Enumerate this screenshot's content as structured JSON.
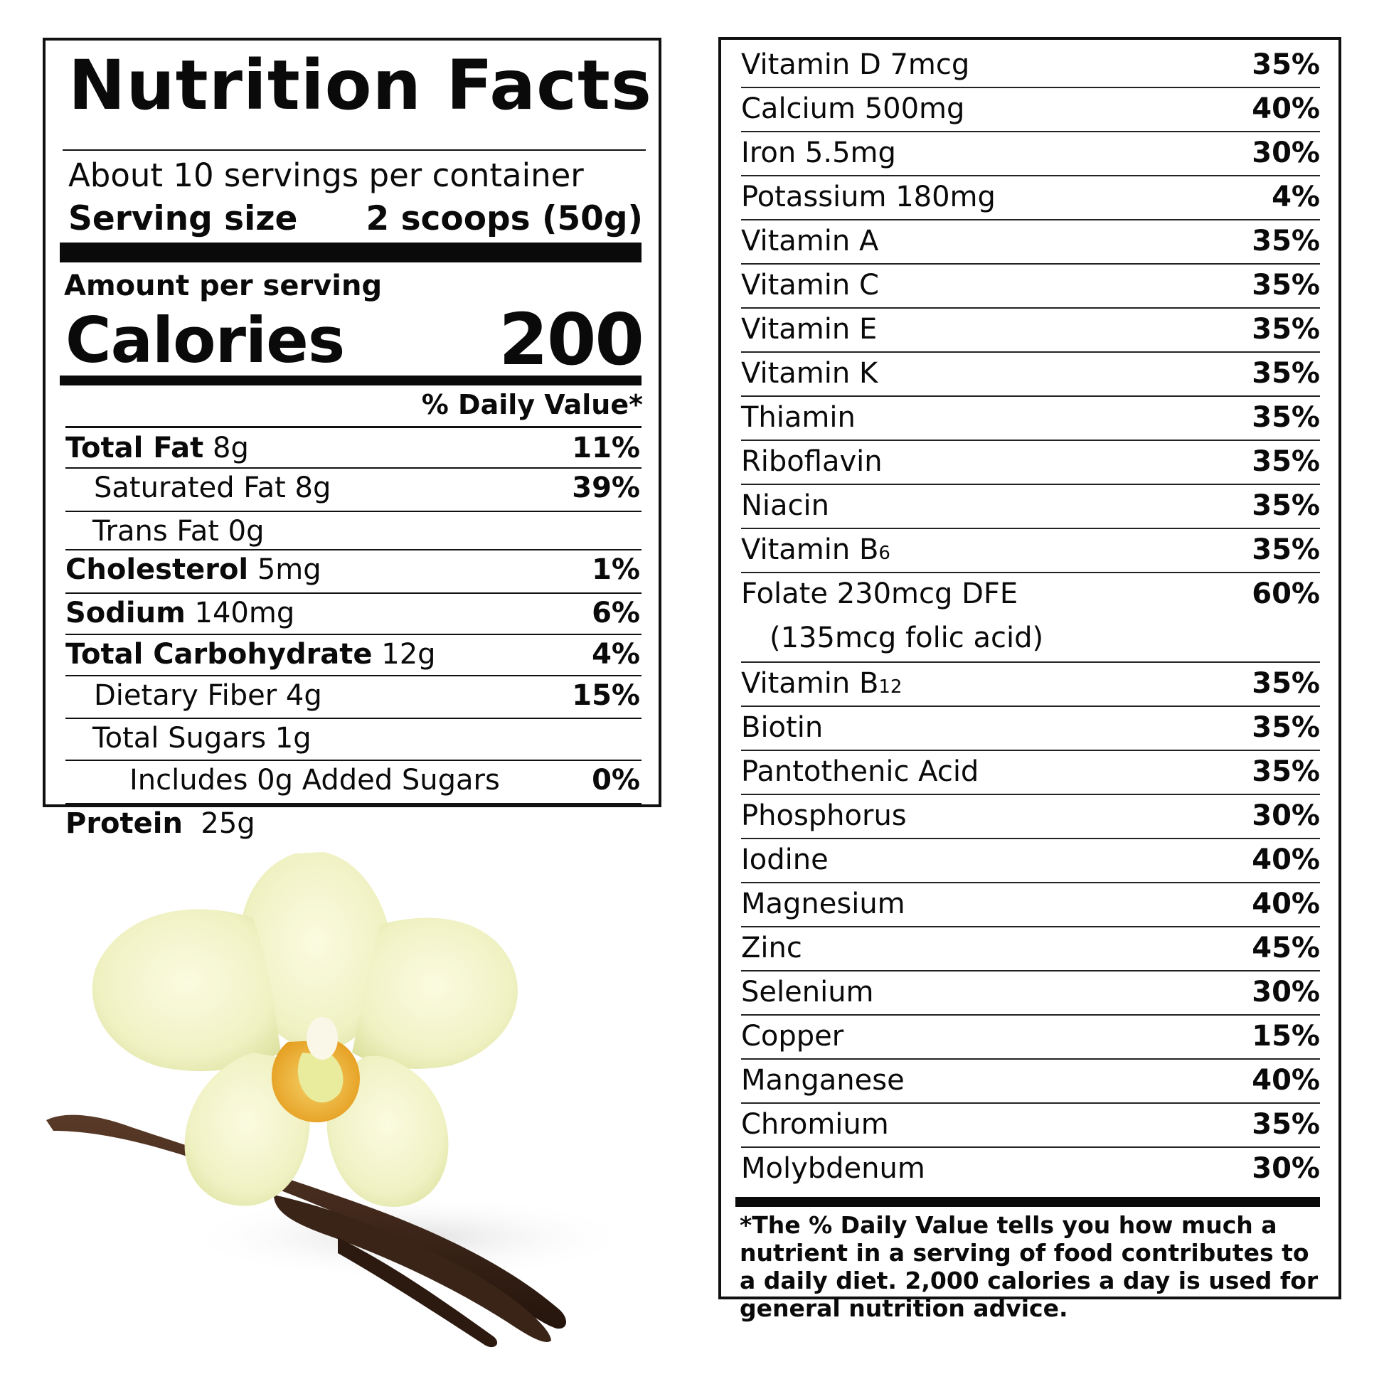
{
  "label": {
    "title": "Nutrition Facts",
    "servings_per_container": "About 10 servings per container",
    "serving_size_label": "Serving size",
    "serving_size_value": "2 scoops (50g)",
    "amount_per_serving": "Amount per serving",
    "calories_label": "Calories",
    "calories_value": "200",
    "daily_value_header": "% Daily Value*",
    "nutrients": [
      {
        "name": "Total Fat",
        "amount": "8g",
        "dv": "11%"
      },
      {
        "name": "Saturated Fat 8g",
        "amount": "",
        "dv": "39%"
      },
      {
        "name": "Trans Fat 0g",
        "amount": "",
        "dv": ""
      },
      {
        "name": "Cholesterol",
        "amount": "5mg",
        "dv": "1%"
      },
      {
        "name": "Sodium",
        "amount": "140mg",
        "dv": "6%"
      },
      {
        "name": "Total Carbohydrate",
        "amount": "12g",
        "dv": "4%"
      },
      {
        "name": "Dietary Fiber 4g",
        "amount": "",
        "dv": "15%"
      },
      {
        "name": "Total Sugars 1g",
        "amount": "",
        "dv": ""
      },
      {
        "name": "Includes 0g Added Sugars",
        "amount": "",
        "dv": "0%"
      },
      {
        "name": "Protein",
        "amount": "25g",
        "dv": ""
      }
    ]
  },
  "vitamins": [
    {
      "name": "Vitamin D 7mcg",
      "dv": "35%"
    },
    {
      "name": "Calcium 500mg",
      "dv": "40%"
    },
    {
      "name": "Iron 5.5mg",
      "dv": "30%"
    },
    {
      "name": "Potassium 180mg",
      "dv": "4%"
    },
    {
      "name": "Vitamin A",
      "dv": "35%"
    },
    {
      "name": "Vitamin C",
      "dv": "35%"
    },
    {
      "name": "Vitamin E",
      "dv": "35%"
    },
    {
      "name": "Vitamin K",
      "dv": "35%"
    },
    {
      "name": "Thiamin",
      "dv": "35%"
    },
    {
      "name": "Riboflavin",
      "dv": "35%"
    },
    {
      "name": "Niacin",
      "dv": "35%"
    },
    {
      "name": "Vitamin B",
      "sub": "6",
      "dv": "35%"
    },
    {
      "name": "Folate 230mcg DFE",
      "line2": "(135mcg folic acid)",
      "dv": "60%"
    },
    {
      "name": "Vitamin B",
      "sub": "12",
      "dv": "35%"
    },
    {
      "name": "Biotin",
      "dv": "35%"
    },
    {
      "name": "Pantothenic Acid",
      "dv": "35%"
    },
    {
      "name": "Phosphorus",
      "dv": "30%"
    },
    {
      "name": "Iodine",
      "dv": "40%"
    },
    {
      "name": "Magnesium",
      "dv": "40%"
    },
    {
      "name": "Zinc",
      "dv": "45%"
    },
    {
      "name": "Selenium",
      "dv": "30%"
    },
    {
      "name": "Copper",
      "dv": "15%"
    },
    {
      "name": "Manganese",
      "dv": "40%"
    },
    {
      "name": "Chromium",
      "dv": "35%"
    },
    {
      "name": "Molybdenum",
      "dv": "30%"
    }
  ],
  "footnote": "*The % Daily Value tells you how much a nutrient in a serving of food contributes to a daily diet.  2,000 calories a day is used for general nutrition advice.",
  "colors": {
    "ink": "#0a0a0a",
    "petal": "#f3f3c6",
    "petal_shade": "#dfe3a4",
    "lip_orange": "#e9a21f",
    "vanilla_pod": "#3b2418"
  },
  "illustration": "vanilla-orchid-flower-with-vanilla-pods"
}
